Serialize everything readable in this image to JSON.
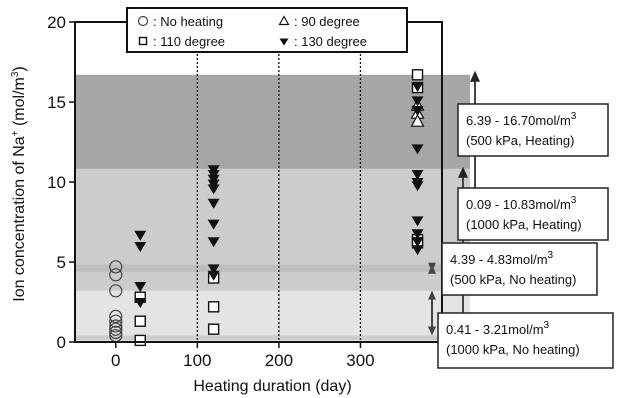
{
  "chart_data": {
    "type": "scatter",
    "xlabel": "Heating duration (day)",
    "ylabel_main": "Ion concentration of Na",
    "ylabel_sup": "+",
    "ylabel_unit": " (mol/m",
    "ylabel_unit_sup": "3",
    "ylabel_unit_close": ")",
    "xlim": [
      -50,
      400
    ],
    "ylim": [
      0,
      20
    ],
    "xticks": [
      0,
      100,
      200,
      300
    ],
    "yticks": [
      0,
      5,
      10,
      15,
      20
    ],
    "grid": "vertical dotted lines at 100, 200, 300",
    "legend_position": "top",
    "bands": [
      {
        "range": [
          6.39,
          16.7
        ],
        "color": "#a6a6a6"
      },
      {
        "range": [
          0.09,
          10.83
        ],
        "color": "#cccccc"
      },
      {
        "range": [
          4.39,
          4.83
        ],
        "color": "#bdbdbd"
      },
      {
        "range": [
          0.41,
          3.21
        ],
        "color": "#e4e4e4"
      }
    ],
    "series": [
      {
        "name": ": No heating",
        "marker": "circle",
        "points": [
          [
            0,
            4.7
          ],
          [
            0,
            4.2
          ],
          [
            0,
            3.2
          ],
          [
            0,
            1.6
          ],
          [
            0,
            1.3
          ],
          [
            0,
            1.0
          ],
          [
            0,
            0.8
          ],
          [
            0,
            0.6
          ],
          [
            0,
            0.4
          ]
        ]
      },
      {
        "name": ": 90 degree",
        "marker": "triangle-open",
        "points": [
          [
            370,
            14.8
          ],
          [
            370,
            14.3
          ],
          [
            370,
            13.8
          ]
        ]
      },
      {
        "name": ": 110 degree",
        "marker": "square-open",
        "points": [
          [
            30,
            2.8
          ],
          [
            30,
            1.3
          ],
          [
            30,
            0.1
          ],
          [
            120,
            4.0
          ],
          [
            120,
            2.2
          ],
          [
            120,
            0.8
          ],
          [
            370,
            16.7
          ],
          [
            370,
            15.9
          ],
          [
            370,
            6.4
          ],
          [
            370,
            6.2
          ]
        ]
      },
      {
        "name": ": 130 degree",
        "marker": "triangle-down-filled",
        "points": [
          [
            30,
            6.7
          ],
          [
            30,
            6.0
          ],
          [
            30,
            3.5
          ],
          [
            30,
            2.5
          ],
          [
            120,
            10.8
          ],
          [
            120,
            10.5
          ],
          [
            120,
            10.2
          ],
          [
            120,
            9.9
          ],
          [
            120,
            9.6
          ],
          [
            120,
            8.7
          ],
          [
            120,
            7.4
          ],
          [
            120,
            6.3
          ],
          [
            120,
            4.6
          ],
          [
            120,
            4.2
          ],
          [
            370,
            16.0
          ],
          [
            370,
            15.1
          ],
          [
            370,
            14.5
          ],
          [
            370,
            12.1
          ],
          [
            370,
            10.5
          ],
          [
            370,
            10.0
          ],
          [
            370,
            9.8
          ],
          [
            370,
            7.6
          ],
          [
            370,
            6.8
          ],
          [
            370,
            6.3
          ],
          [
            370,
            5.8
          ]
        ]
      }
    ],
    "annotations": [
      {
        "line1": "6.39 - 16.70mol/m",
        "sup": "3",
        "line2": "(500 kPa, Heating)",
        "range": [
          6.39,
          16.7
        ],
        "arrow": "down"
      },
      {
        "line1": "0.09 - 10.83mol/m",
        "sup": "3",
        "line2": "(1000 kPa, Heating)",
        "range": [
          0.09,
          10.83
        ],
        "arrow": "down"
      },
      {
        "line1": "4.39 - 4.83mol/m",
        "sup": "3",
        "line2": "(500 kPa, No heating)",
        "range": [
          4.39,
          4.83
        ],
        "arrow": "both"
      },
      {
        "line1": "0.41 - 3.21mol/m",
        "sup": "3",
        "line2": "(1000 kPa, No heating)",
        "range": [
          0.41,
          3.21
        ],
        "arrow": "both"
      }
    ]
  }
}
